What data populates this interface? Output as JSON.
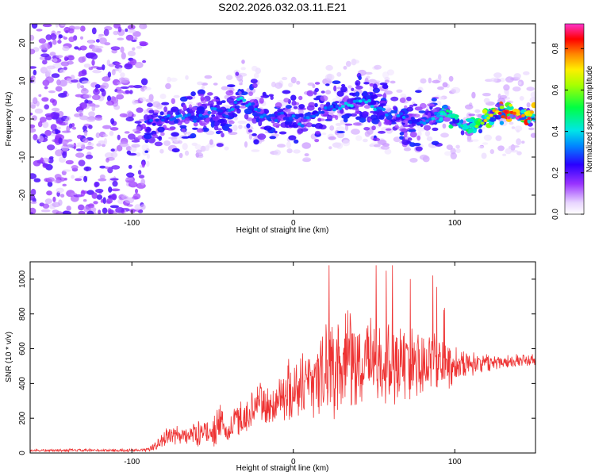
{
  "title": "S202.2026.032.03.11.E21",
  "colors": {
    "snr_line": "#ee3333",
    "spectrogram_palette": [
      "#ffffff",
      "#efe4ff",
      "#c9a6ff",
      "#8a2be2",
      "#3a00ff",
      "#0066ff",
      "#00ccff",
      "#00ff88",
      "#66ff00",
      "#ffff00",
      "#ff9900",
      "#ff0000",
      "#ff00ff"
    ]
  },
  "chart_data": [
    {
      "type": "heatmap",
      "title": "S202.2026.032.03.11.E21",
      "xlabel": "Height of straight line (km)",
      "ylabel": "Frequency (Hz)",
      "xlim": [
        -163,
        150
      ],
      "ylim": [
        -25,
        25
      ],
      "xticks": [
        -100,
        0,
        100
      ],
      "xtick_labels": [
        "-100",
        "0",
        "100"
      ],
      "yticks": [
        -20,
        -10,
        0,
        10,
        20
      ],
      "ytick_labels": [
        "-20",
        "-10",
        "0",
        "10",
        "20"
      ],
      "colorbar": {
        "label": "Normalized spectral amplitude",
        "range": [
          0,
          0.92
        ],
        "ticks": [
          0.0,
          0.2,
          0.4,
          0.6,
          0.8
        ],
        "tick_labels": [
          "0.0",
          "0.2",
          "0.4",
          "0.6",
          "0.8"
        ]
      },
      "regions": [
        {
          "x_range": [
            -163,
            -92
          ],
          "y_range": [
            -25,
            25
          ],
          "amplitude_range": [
            0.05,
            0.22
          ],
          "description_level": "uniform noise"
        },
        {
          "x_range": [
            -92,
            90
          ],
          "y_range": [
            -10,
            10
          ],
          "amplitude_range": [
            0.1,
            0.3
          ]
        },
        {
          "x_range": [
            90,
            150
          ],
          "y_range": [
            -3,
            5
          ],
          "amplitude_range": [
            0.3,
            0.9
          ]
        }
      ],
      "ridge": {
        "x": [
          -90,
          -80,
          -70,
          -60,
          -50,
          -40,
          -33,
          -25,
          -15,
          -5,
          5,
          15,
          25,
          35,
          45,
          55,
          65,
          75,
          85,
          95,
          105,
          115,
          125,
          135,
          145,
          150
        ],
        "y": [
          -1,
          0,
          1,
          0,
          2,
          1,
          5,
          3,
          0,
          1,
          -1,
          2,
          3,
          4,
          5,
          2,
          1,
          -1,
          0,
          2,
          -2,
          -1,
          2,
          1,
          1,
          1
        ],
        "amplitude": [
          0.3,
          0.3,
          0.35,
          0.3,
          0.35,
          0.3,
          0.4,
          0.35,
          0.3,
          0.3,
          0.35,
          0.3,
          0.35,
          0.4,
          0.4,
          0.35,
          0.35,
          0.3,
          0.35,
          0.5,
          0.45,
          0.6,
          0.85,
          0.9,
          0.85,
          0.8
        ]
      }
    },
    {
      "type": "line",
      "xlabel": "Height of straight line (km)",
      "ylabel": "SNR (10 * v/v)",
      "xlim": [
        -163,
        150
      ],
      "ylim": [
        0,
        1100
      ],
      "xticks": [
        -100,
        0,
        100
      ],
      "xtick_labels": [
        "-100",
        "0",
        "100"
      ],
      "yticks": [
        0,
        200,
        400,
        600,
        800,
        1000
      ],
      "ytick_labels": [
        "0",
        "200",
        "400",
        "600",
        "800",
        "1000"
      ],
      "envelope": {
        "x": [
          -163,
          -110,
          -95,
          -90,
          -85,
          -80,
          -70,
          -60,
          -50,
          -45,
          -40,
          -35,
          -30,
          -25,
          -20,
          -15,
          -10,
          -5,
          0,
          5,
          10,
          15,
          20,
          25,
          30,
          35,
          40,
          50,
          60,
          70,
          80,
          90,
          100,
          110,
          120,
          130,
          140,
          150
        ],
        "center": [
          15,
          15,
          15,
          20,
          40,
          90,
          100,
          110,
          130,
          160,
          110,
          200,
          200,
          260,
          300,
          250,
          300,
          350,
          360,
          400,
          430,
          440,
          470,
          500,
          520,
          530,
          520,
          520,
          530,
          520,
          520,
          520,
          520,
          520,
          520,
          530,
          530,
          535
        ],
        "spread": [
          10,
          10,
          10,
          15,
          40,
          60,
          70,
          80,
          100,
          130,
          80,
          130,
          120,
          130,
          150,
          140,
          180,
          200,
          220,
          240,
          260,
          280,
          300,
          320,
          330,
          320,
          330,
          300,
          300,
          280,
          250,
          220,
          130,
          80,
          60,
          50,
          45,
          40
        ],
        "peak_max": 1080
      }
    }
  ]
}
